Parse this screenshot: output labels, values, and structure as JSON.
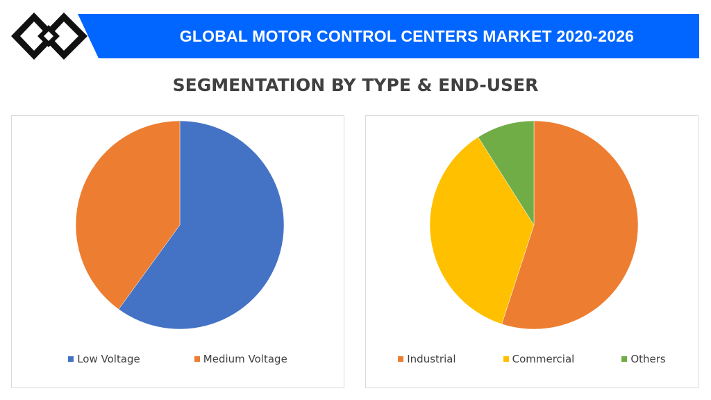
{
  "header": {
    "title": "GLOBAL MOTOR CONTROL CENTERS MARKET 2020-2026",
    "banner_color": "#0066ff",
    "logo_icon": "interlocking-diamonds-logo"
  },
  "subtitle": "SEGMENTATION BY TYPE & END-USER",
  "chart_data": [
    {
      "type": "pie",
      "title": "",
      "categories": [
        "Low Voltage",
        "Medium Voltage"
      ],
      "values": [
        60,
        40
      ],
      "colors": [
        "#4472c4",
        "#ed7d31"
      ],
      "start": "12 o'clock, clockwise",
      "legend": "bottom"
    },
    {
      "type": "pie",
      "title": "",
      "categories": [
        "Industrial",
        "Commercial",
        "Others"
      ],
      "values": [
        55,
        36,
        9
      ],
      "colors": [
        "#ed7d31",
        "#ffc000",
        "#70ad47"
      ],
      "start": "12 o'clock, clockwise",
      "legend": "bottom"
    }
  ]
}
